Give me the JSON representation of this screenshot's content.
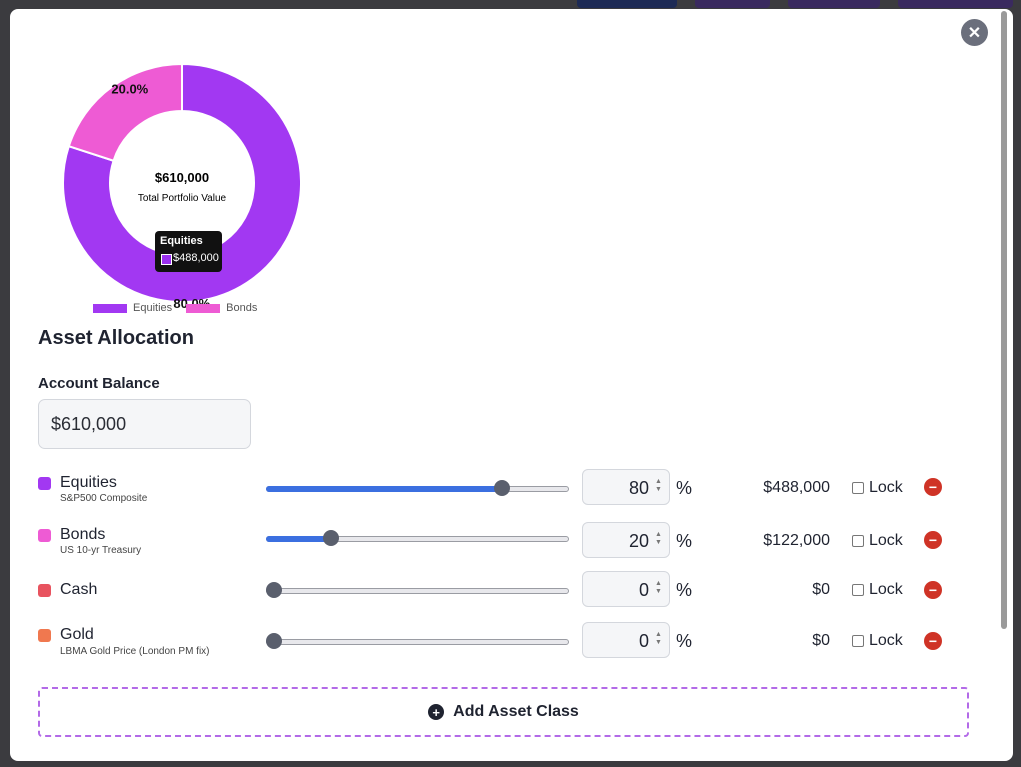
{
  "colors": {
    "equities": "#a238f2",
    "bonds": "#ee5bd4",
    "cash": "#e8535f",
    "gold": "#f0784f",
    "slider_fill": "#3b6fe0",
    "remove": "#cf3326",
    "add_border": "#b36ae8"
  },
  "modal": {
    "close_icon": "close-icon"
  },
  "chart_data": {
    "type": "pie",
    "categories": [
      "Equities",
      "Bonds"
    ],
    "values": [
      488000,
      122000
    ],
    "percent_labels": [
      "80.0%",
      "20.0%"
    ],
    "center_value": "$610,000",
    "center_label": "Total Portfolio Value",
    "legend": [
      "Equities",
      "Bonds"
    ],
    "legend_position": "bottom",
    "tooltip": {
      "title": "Equities",
      "value": "$488,000"
    }
  },
  "section_title": "Asset Allocation",
  "balance": {
    "label": "Account Balance",
    "value": "$610,000"
  },
  "assets": [
    {
      "name": "Equities",
      "subtitle": "S&P500 Composite",
      "percent": 80,
      "percent_text": "80",
      "amount": "$488,000",
      "lock": "Lock"
    },
    {
      "name": "Bonds",
      "subtitle": "US 10-yr Treasury",
      "percent": 20,
      "percent_text": "20",
      "amount": "$122,000",
      "lock": "Lock"
    },
    {
      "name": "Cash",
      "subtitle": "",
      "percent": 0,
      "percent_text": "0",
      "amount": "$0",
      "lock": "Lock"
    },
    {
      "name": "Gold",
      "subtitle": "LBMA Gold Price (London PM fix)",
      "percent": 0,
      "percent_text": "0",
      "amount": "$0",
      "lock": "Lock"
    }
  ],
  "percent_sign": "%",
  "add_button": {
    "label": "Add Asset Class",
    "icon": "plus-circle-icon"
  }
}
